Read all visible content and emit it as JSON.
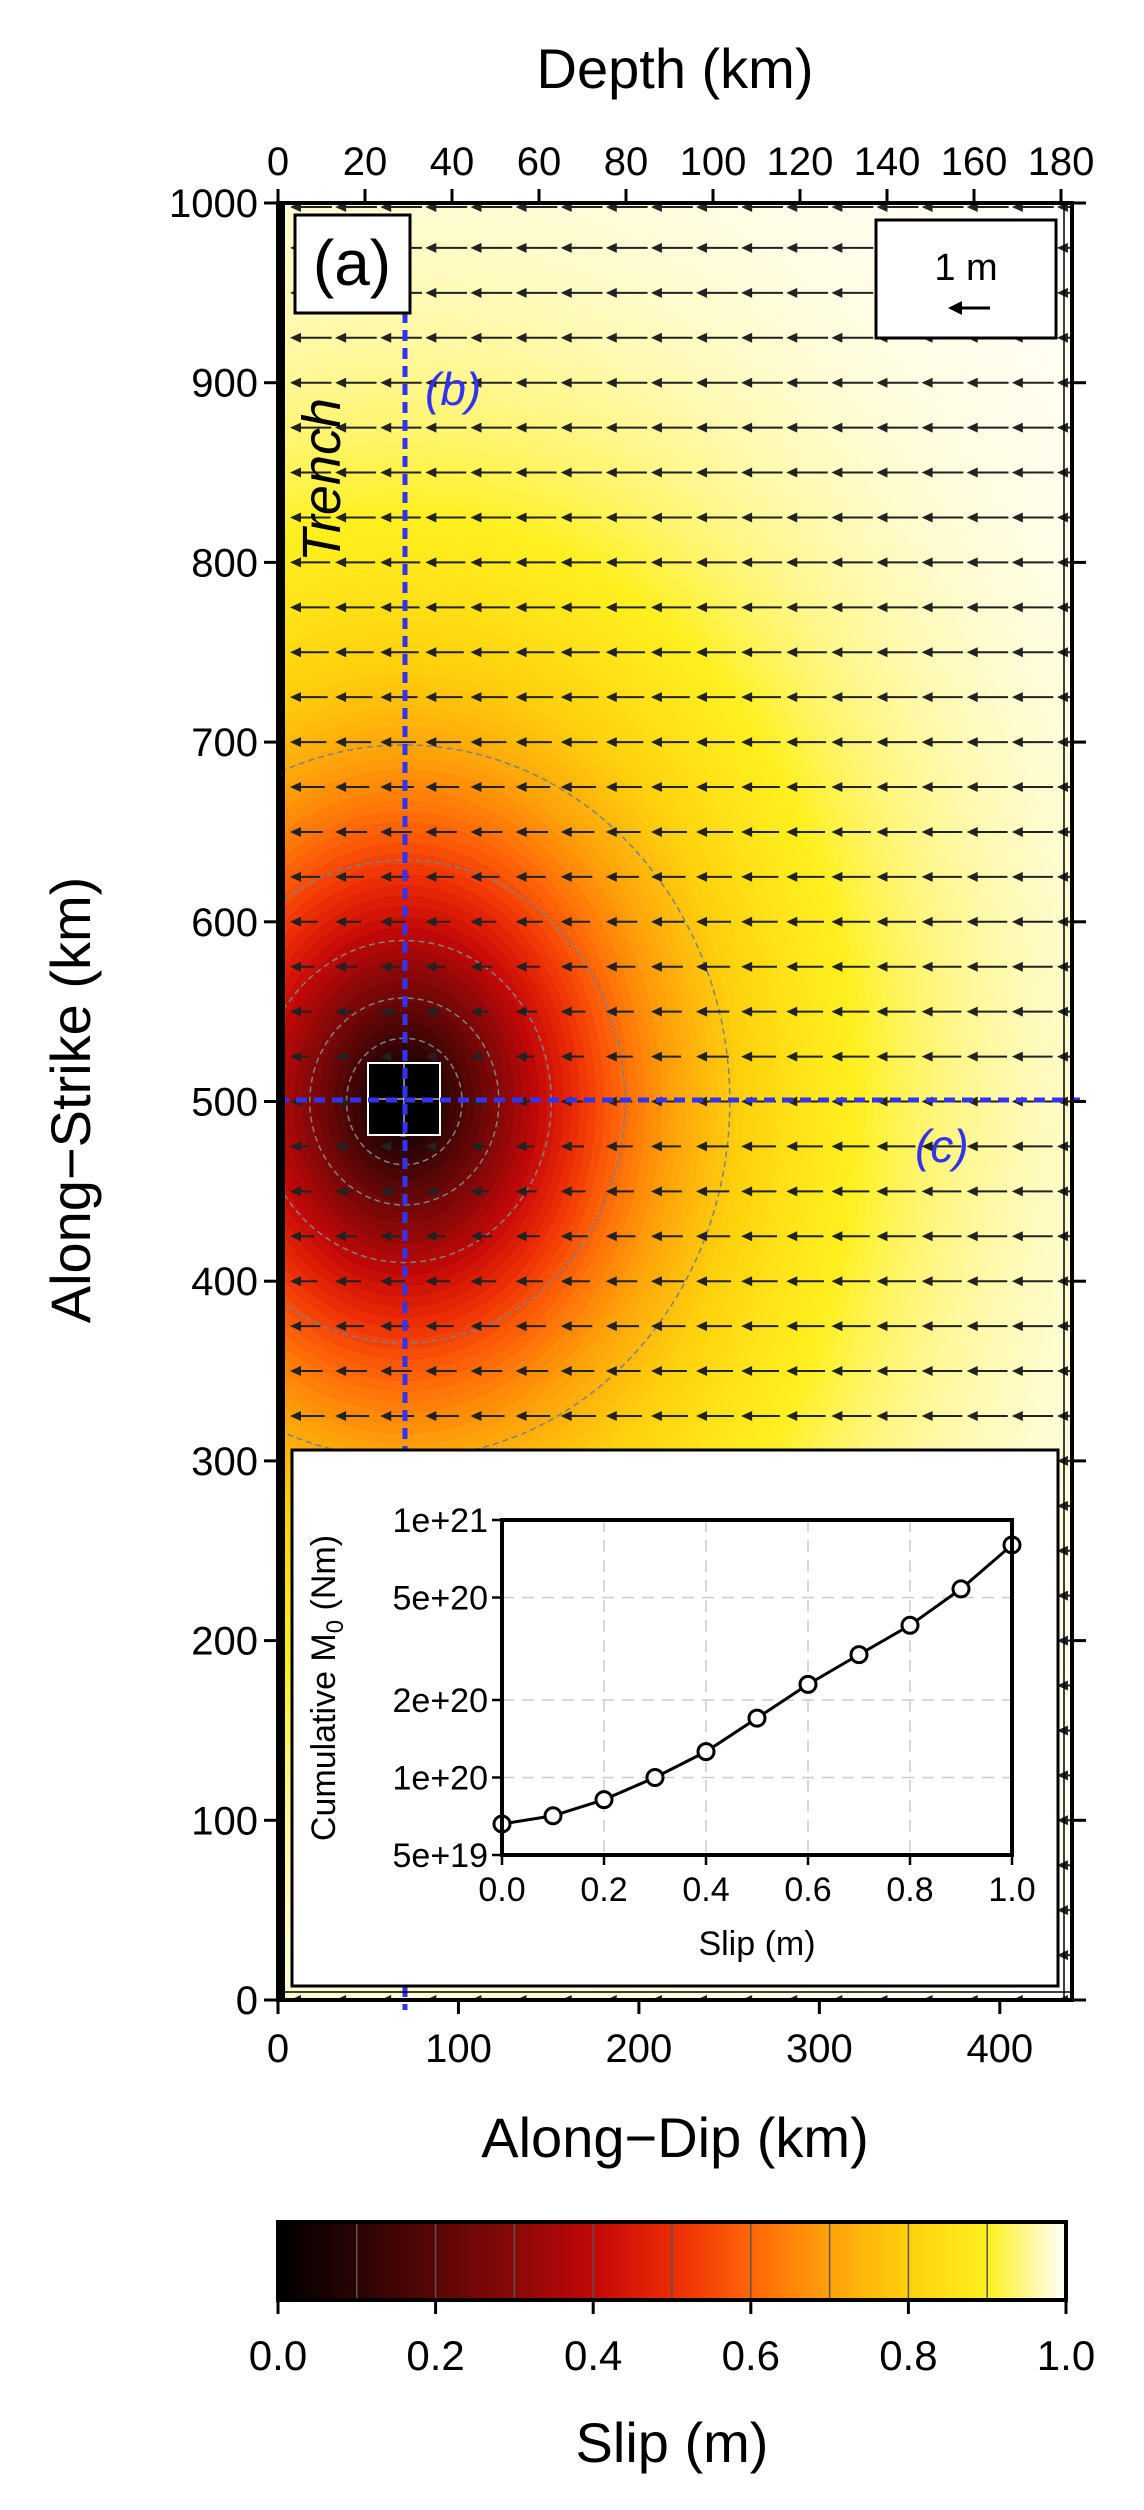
{
  "panel_label": "(a)",
  "trench_label": "Trench",
  "profile_b_label": "(b)",
  "profile_c_label": "(c)",
  "scale_label": "1 m",
  "colors": {
    "profile_line": "#3333ee",
    "arrow": "#222222",
    "patch": "#000000",
    "contour": "#808080"
  },
  "chart_data": [
    {
      "type": "heatmap",
      "title": "",
      "xlabel": "Along−Dip (km)",
      "ylabel": "Along−Strike (km)",
      "x2label": "Depth (km)",
      "xlim": [
        0,
        440
      ],
      "ylim": [
        0,
        1000
      ],
      "xticks": [
        0,
        100,
        200,
        300,
        400
      ],
      "yticks": [
        0,
        100,
        200,
        300,
        400,
        500,
        600,
        700,
        800,
        900,
        1000
      ],
      "x2ticks": [
        0,
        20,
        40,
        60,
        80,
        100,
        120,
        140,
        160,
        180
      ],
      "slip_field": {
        "patch_center": [
          70,
          500
        ],
        "patch_half_width_km": 20,
        "slip_at_patch": 0.0,
        "slip_far_field": 1.0
      },
      "profiles": [
        {
          "name": "(b)",
          "orientation": "along-strike",
          "x": 70
        },
        {
          "name": "(c)",
          "orientation": "along-dip",
          "y": 500
        }
      ],
      "vectors": {
        "direction": "toward trench (−dip)",
        "scale_m": 1
      },
      "contour_levels": [
        0.1,
        0.2,
        0.3,
        0.4,
        0.5,
        0.6,
        0.7
      ]
    },
    {
      "type": "line",
      "title": "",
      "xlabel": "Slip (m)",
      "ylabel": "Cumulative M",
      "ylabel_sub": "0",
      "ylabel_unit": " (Nm)",
      "yscale": "log",
      "xlim": [
        0.0,
        1.0
      ],
      "ylim": [
        5e+19,
        1e+21
      ],
      "xticks": [
        "0.0",
        "0.2",
        "0.4",
        "0.6",
        "0.8",
        "1.0"
      ],
      "yticks": [
        "5e+19",
        "1e+20",
        "2e+20",
        "5e+20",
        "1e+21"
      ],
      "ytick_values": [
        5e+19,
        1e+20,
        2e+20,
        5e+20,
        1e+21
      ],
      "grid": true,
      "x": [
        0.0,
        0.1,
        0.2,
        0.3,
        0.4,
        0.5,
        0.6,
        0.7,
        0.8,
        0.9,
        1.0
      ],
      "y": [
        6.6e+19,
        7.1e+19,
        8.2e+19,
        1e+20,
        1.26e+20,
        1.7e+20,
        2.3e+20,
        3e+20,
        3.9e+20,
        5.4e+20,
        8e+20
      ]
    },
    {
      "type": "colorbar",
      "title": "",
      "xlabel": "Slip (m)",
      "range": [
        0.0,
        1.0
      ],
      "ticks": [
        "0.0",
        "0.2",
        "0.4",
        "0.6",
        "0.8",
        "1.0"
      ],
      "stops": [
        "#000000",
        "#2a0303",
        "#5a0606",
        "#8a0808",
        "#c20808",
        "#ec2b05",
        "#ff6508",
        "#ffa10a",
        "#ffd10d",
        "#fff020",
        "#ffffff"
      ]
    }
  ]
}
